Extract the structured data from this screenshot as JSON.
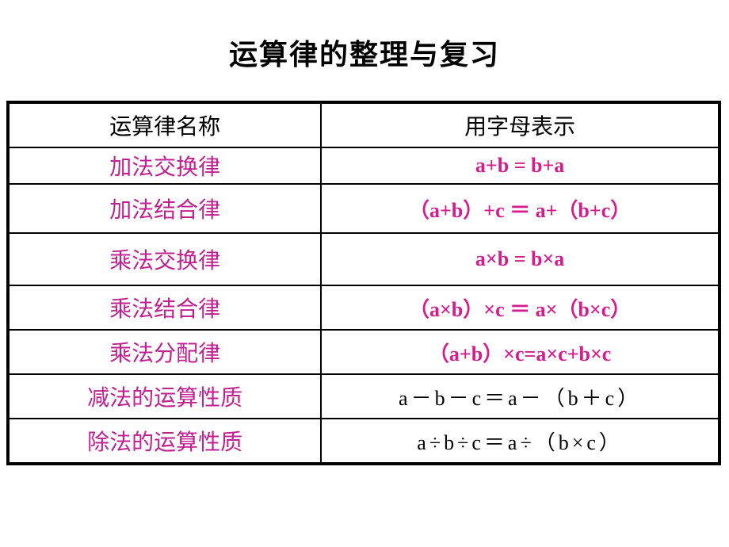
{
  "title": "运算律的整理与复习",
  "theme": {
    "title_color": "#000000",
    "magenta_name": "#c02090",
    "magenta_formula": "#d81b8c",
    "border_color": "#000000",
    "background": "#ffffff"
  },
  "table": {
    "header": {
      "left": "运算律名称",
      "right": "用字母表示"
    },
    "rows": [
      {
        "name": "加法交换律",
        "name_color": "magenta",
        "formula": "a+b = b+a",
        "formula_style": "bold-magenta"
      },
      {
        "name": "加法结合律",
        "name_color": "magenta",
        "formula": "（a+b）+c ＝ a+（b+c）",
        "formula_style": "bold-magenta"
      },
      {
        "name": "乘法交换律",
        "name_color": "magenta",
        "formula": "a×b = b×a",
        "formula_style": "bold-magenta"
      },
      {
        "name": "乘法结合律",
        "name_color": "magenta",
        "formula": "（a×b）×c ＝ a×（b×c）",
        "formula_style": "bold-magenta"
      },
      {
        "name": "乘法分配律",
        "name_color": "magenta",
        "formula": "（a+b）×c=a×c+b×c",
        "formula_style": "bold-magenta"
      },
      {
        "name": "减法的运算性质",
        "name_color": "magenta",
        "formula": "a－b－c＝a－（b＋c）",
        "formula_style": "plain-black"
      },
      {
        "name": "除法的运算性质",
        "name_color": "magenta",
        "formula": "a÷b÷c＝a÷（b×c）",
        "formula_style": "plain-black"
      }
    ]
  }
}
